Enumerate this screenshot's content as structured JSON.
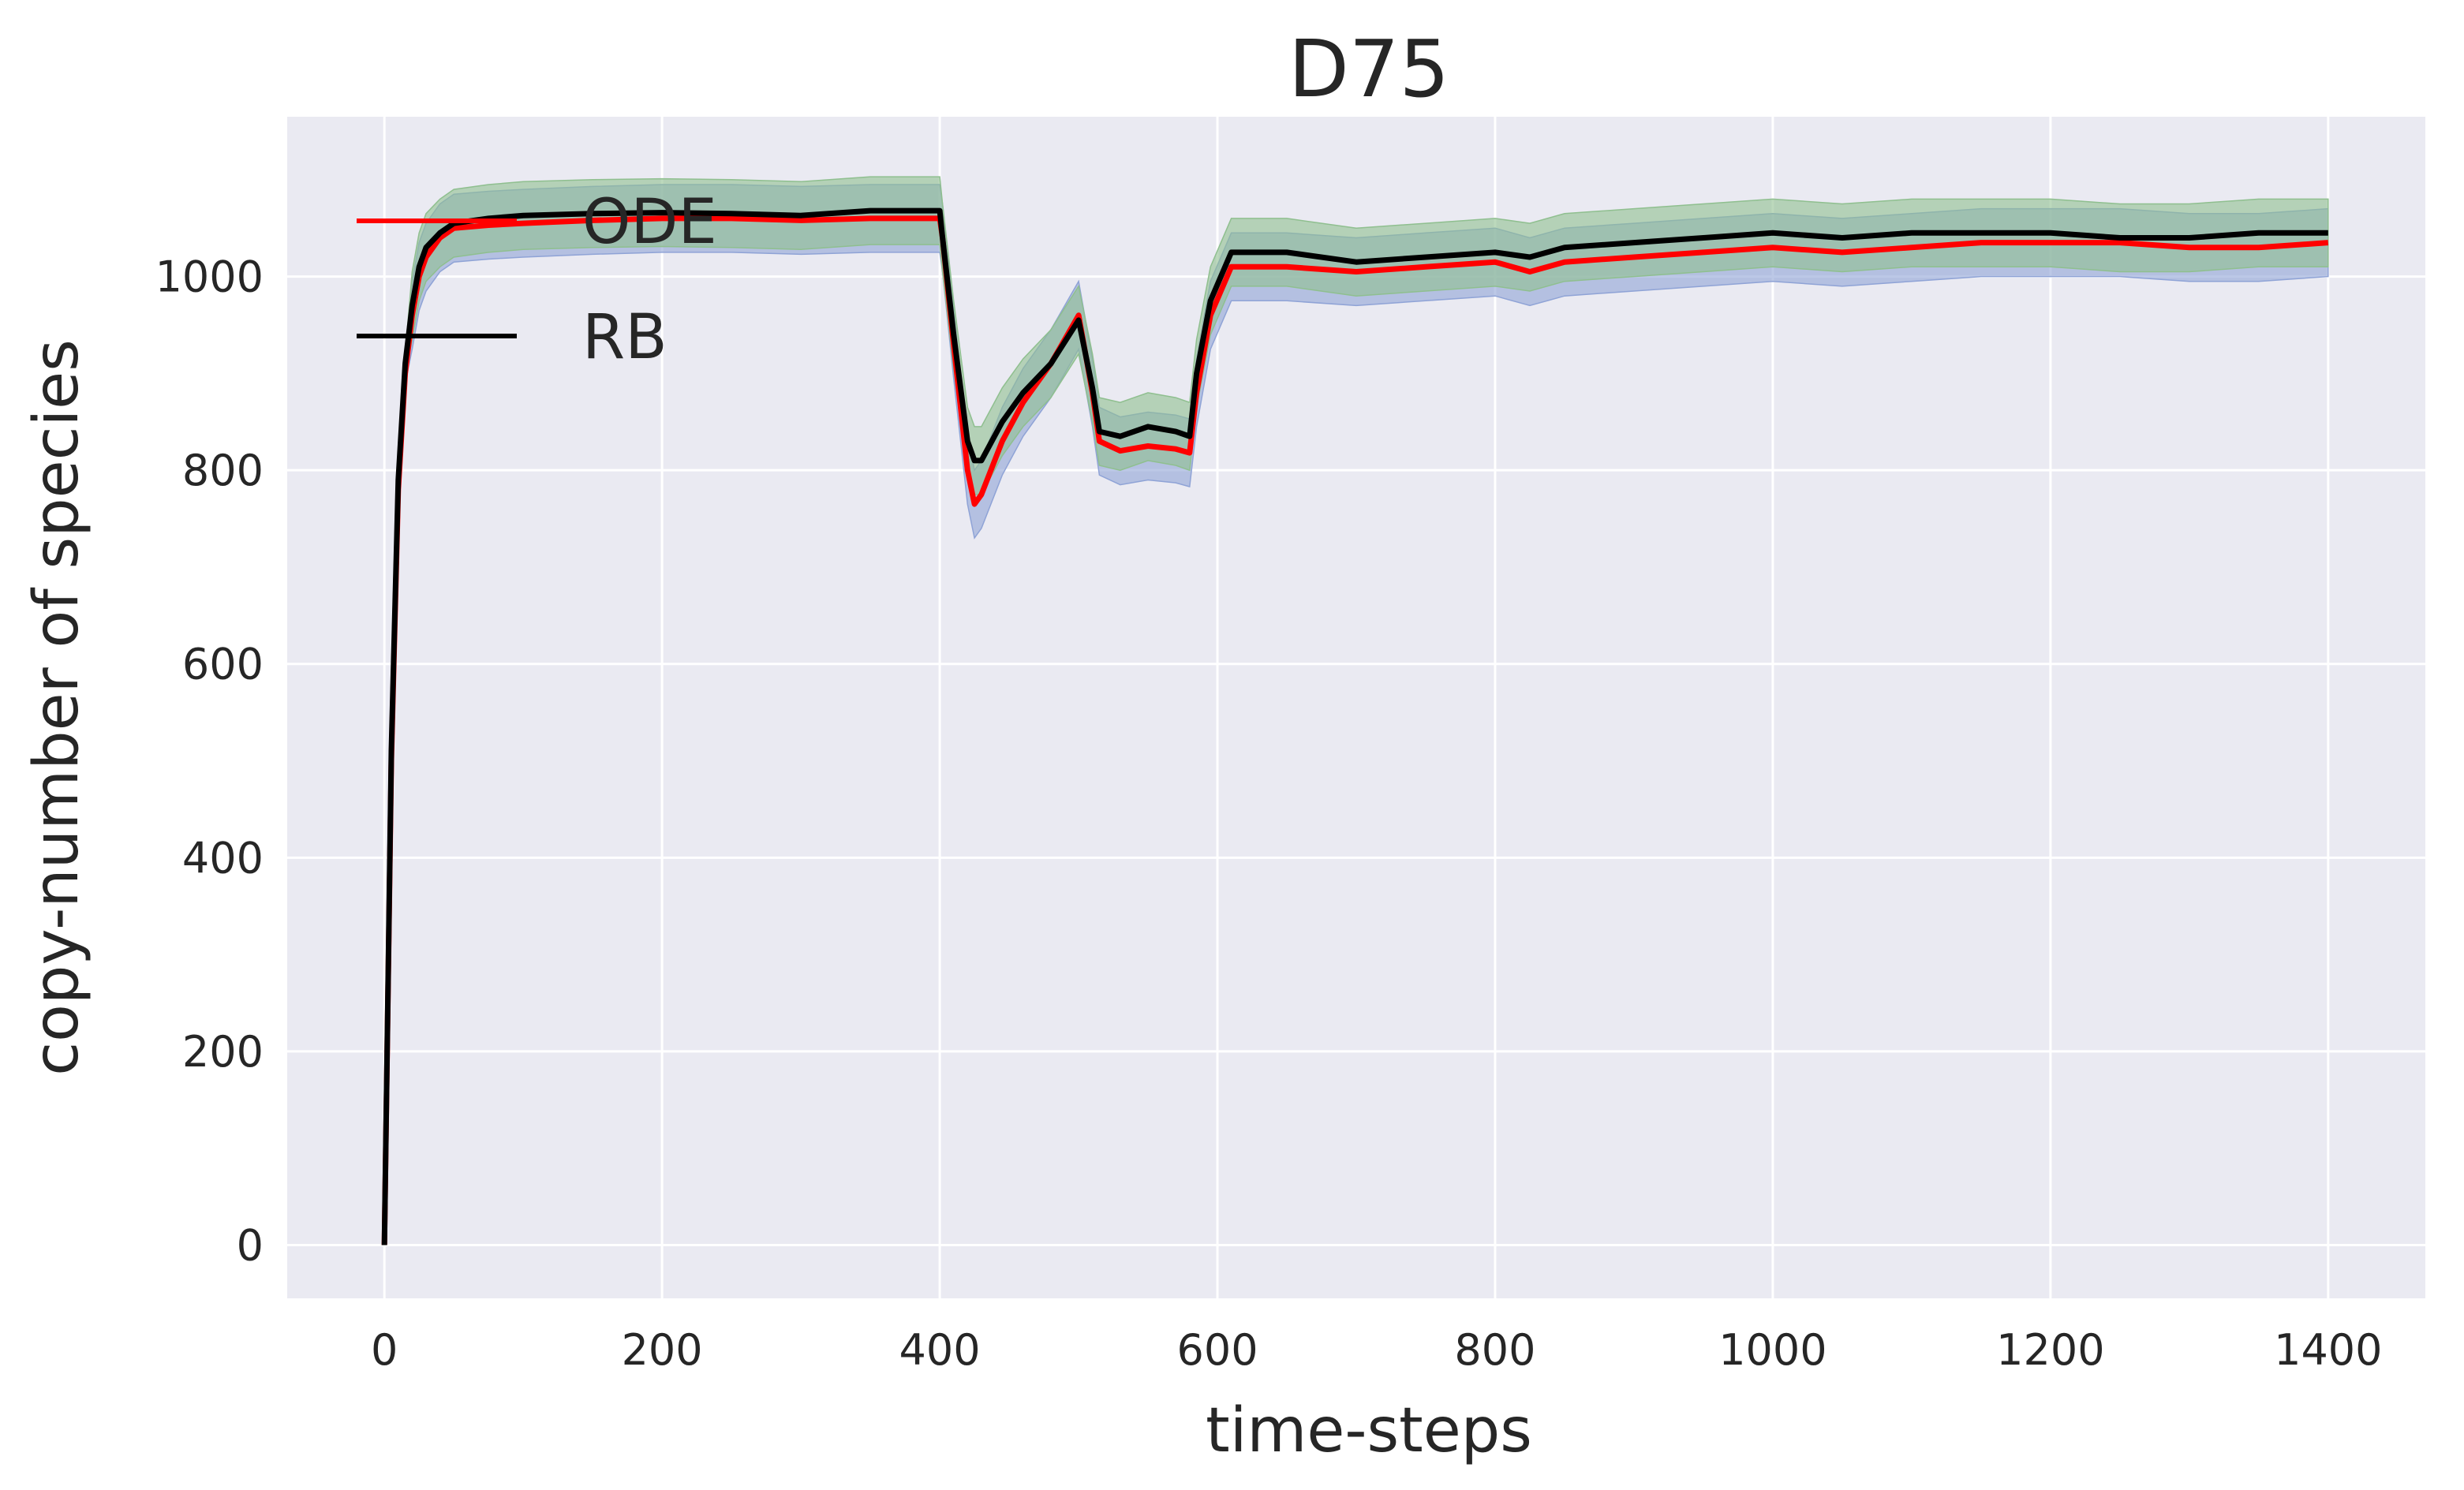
{
  "chart_data": {
    "type": "line",
    "title": "D75",
    "xlabel": "time-steps",
    "ylabel": "copy-number of species",
    "xlim": [
      -70,
      1470
    ],
    "ylim": [
      -55,
      1165
    ],
    "xticks": [
      0,
      200,
      400,
      600,
      800,
      1000,
      1200,
      1400
    ],
    "yticks": [
      0,
      200,
      400,
      600,
      800,
      1000
    ],
    "grid": true,
    "legend_position": "top-left",
    "colors": {
      "background": "#eaeaf2",
      "grid": "#ffffff",
      "ode": "#ff0000",
      "rb": "#000000",
      "band_ode": "#8fa3d6",
      "band_rb": "#8fbf8f"
    },
    "series": [
      {
        "name": "ODE",
        "color": "#ff0000",
        "band_half_width": 35,
        "x": [
          0,
          5,
          10,
          15,
          20,
          25,
          30,
          40,
          50,
          75,
          100,
          150,
          200,
          250,
          300,
          350,
          400,
          402,
          410,
          420,
          425,
          430,
          445,
          460,
          480,
          500,
          510,
          515,
          530,
          550,
          570,
          580,
          585,
          595,
          610,
          650,
          700,
          750,
          800,
          825,
          850,
          900,
          950,
          1000,
          1050,
          1100,
          1150,
          1200,
          1250,
          1300,
          1350,
          1400
        ],
        "y": [
          0,
          500,
          780,
          900,
          960,
          1000,
          1020,
          1040,
          1050,
          1053,
          1055,
          1058,
          1060,
          1060,
          1058,
          1060,
          1060,
          1040,
          930,
          800,
          765,
          775,
          830,
          870,
          910,
          960,
          880,
          830,
          820,
          825,
          822,
          818,
          880,
          960,
          1010,
          1010,
          1005,
          1010,
          1015,
          1005,
          1015,
          1020,
          1025,
          1030,
          1025,
          1030,
          1035,
          1035,
          1035,
          1030,
          1030,
          1035
        ]
      },
      {
        "name": "RB",
        "color": "#000000",
        "band_half_width": 35,
        "x": [
          0,
          5,
          10,
          15,
          20,
          25,
          30,
          40,
          50,
          75,
          100,
          150,
          200,
          250,
          300,
          350,
          400,
          402,
          410,
          420,
          425,
          430,
          445,
          460,
          480,
          500,
          510,
          515,
          530,
          550,
          570,
          580,
          585,
          595,
          610,
          650,
          700,
          750,
          800,
          825,
          850,
          900,
          950,
          1000,
          1050,
          1100,
          1150,
          1200,
          1250,
          1300,
          1350,
          1400
        ],
        "y": [
          0,
          510,
          790,
          910,
          970,
          1010,
          1030,
          1045,
          1055,
          1060,
          1063,
          1065,
          1066,
          1065,
          1063,
          1068,
          1068,
          1040,
          940,
          830,
          810,
          810,
          850,
          880,
          910,
          955,
          885,
          840,
          835,
          845,
          840,
          835,
          900,
          975,
          1025,
          1025,
          1015,
          1020,
          1025,
          1020,
          1030,
          1035,
          1040,
          1045,
          1040,
          1045,
          1045,
          1045,
          1040,
          1040,
          1045,
          1045
        ]
      }
    ]
  }
}
